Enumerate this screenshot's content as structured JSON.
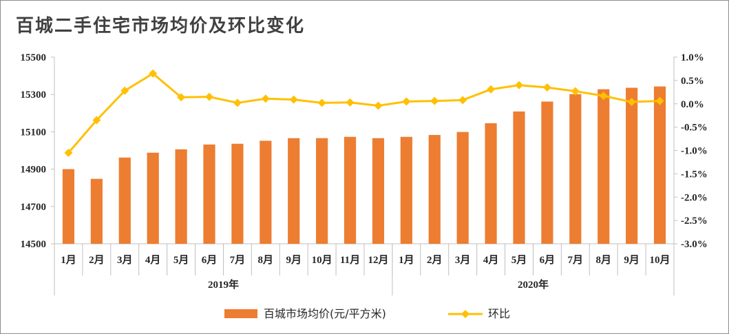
{
  "chart_data": {
    "type": "bar",
    "title": "百城二手住宅市场均价及环比变化",
    "categories": [
      "1月",
      "2月",
      "3月",
      "4月",
      "5月",
      "6月",
      "7月",
      "8月",
      "9月",
      "10月",
      "11月",
      "12月",
      "1月",
      "2月",
      "3月",
      "4月",
      "5月",
      "6月",
      "7月",
      "8月",
      "9月",
      "10月"
    ],
    "groups": [
      {
        "label": "2019年",
        "count": 12
      },
      {
        "label": "2020年",
        "count": 10
      }
    ],
    "series": [
      {
        "name": "百城市场均价(元/平方米)",
        "type": "bar",
        "axis": "left",
        "color": "#ED7D31",
        "values": [
          14900,
          14848,
          14962,
          14988,
          15006,
          15032,
          15036,
          15052,
          15066,
          15066,
          15073,
          15066,
          15073,
          15083,
          15099,
          15146,
          15209,
          15262,
          15302,
          15328,
          15336,
          15343
        ]
      },
      {
        "name": "环比",
        "type": "line",
        "axis": "right",
        "color": "#FFC000",
        "marker": "diamond",
        "values": [
          -1.05,
          -0.35,
          0.28,
          0.65,
          0.14,
          0.15,
          0.02,
          0.11,
          0.09,
          0.02,
          0.03,
          -0.04,
          0.05,
          0.06,
          0.08,
          0.31,
          0.4,
          0.35,
          0.27,
          0.17,
          0.04,
          0.06
        ]
      }
    ],
    "y_left": {
      "min": 14500,
      "max": 15500,
      "ticks": [
        14500,
        14700,
        14900,
        15100,
        15300,
        15500
      ]
    },
    "y_right": {
      "min": -3.0,
      "max": 1.0,
      "ticks": [
        "-3.0%",
        "-2.5%",
        "-2.0%",
        "-1.5%",
        "-1.0%",
        "-0.5%",
        "0.0%",
        "0.5%",
        "1.0%"
      ]
    },
    "legend": "bottom",
    "grid": false
  }
}
